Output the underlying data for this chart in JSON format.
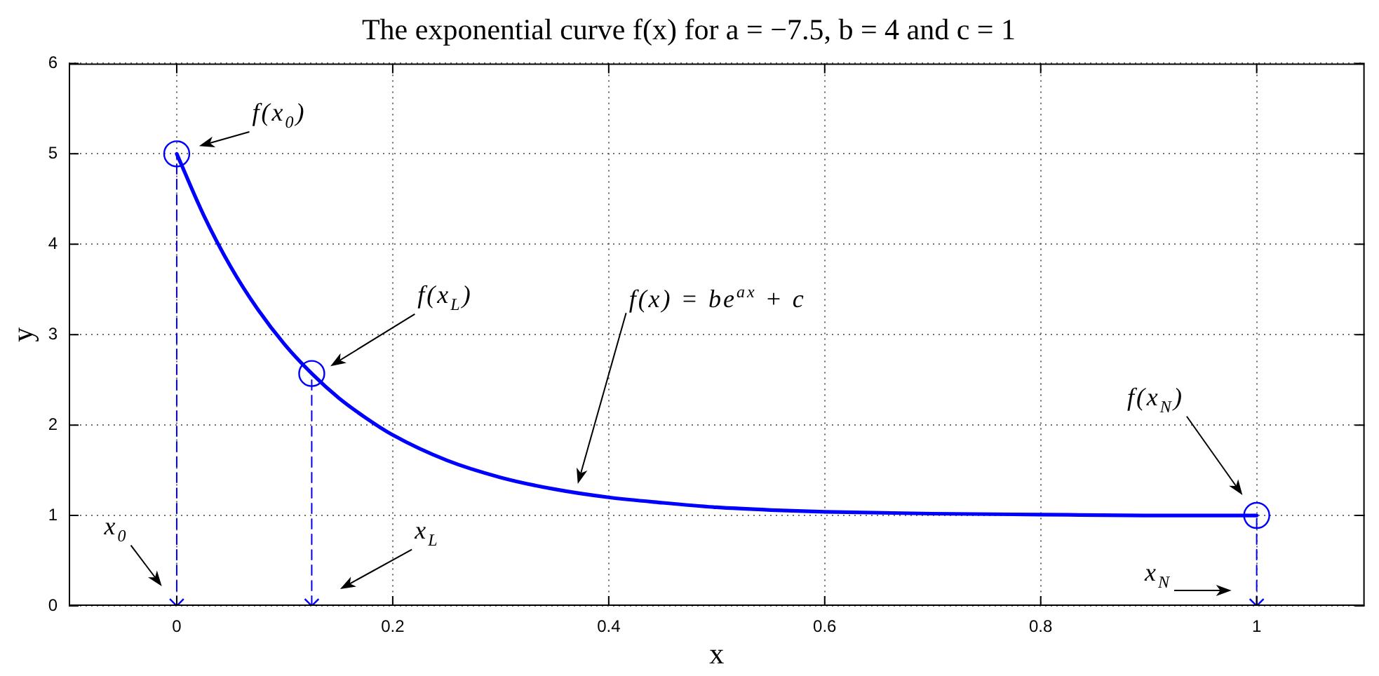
{
  "chart_data": {
    "type": "line",
    "title": "The exponential curve f(x) for a = −7.5, b = 4 and c = 1",
    "xlabel": "x",
    "ylabel": "y",
    "xlim": [
      -0.1,
      1.1
    ],
    "ylim": [
      0,
      6
    ],
    "xticks": [
      0,
      0.2,
      0.4,
      0.6,
      0.8,
      1
    ],
    "yticks": [
      0,
      1,
      2,
      3,
      4,
      5,
      6
    ],
    "grid": true,
    "series": [
      {
        "type": "line",
        "color": "#0000ff",
        "marker": "none",
        "line_style": "solid",
        "x": [
          0,
          0.025,
          0.05,
          0.075,
          0.1,
          0.125,
          0.15,
          0.175,
          0.2,
          0.25,
          0.3,
          0.35,
          0.4,
          0.45,
          0.5,
          0.55,
          0.6,
          0.7,
          0.8,
          0.9,
          1
        ],
        "values": [
          5,
          4.32,
          3.75,
          3.28,
          2.89,
          2.57,
          2.3,
          2.08,
          1.89,
          1.61,
          1.42,
          1.29,
          1.2,
          1.14,
          1.09,
          1.06,
          1.04,
          1.02,
          1.01,
          1.0,
          1.0
        ]
      },
      {
        "type": "line",
        "color": "#0000ff",
        "marker": "none",
        "line_style": "dashed",
        "x": [
          0,
          0
        ],
        "values": [
          0,
          5
        ]
      },
      {
        "type": "line",
        "color": "#0000ff",
        "marker": "none",
        "line_style": "dashed",
        "x": [
          0.125,
          0.125
        ],
        "values": [
          0,
          2.57
        ]
      },
      {
        "type": "line",
        "color": "#0000ff",
        "marker": "none",
        "line_style": "dashed",
        "x": [
          1,
          1
        ],
        "values": [
          0,
          1.0
        ]
      },
      {
        "type": "scatter",
        "color": "#0000ff",
        "marker": "circle",
        "x": [
          0,
          0.125,
          1
        ],
        "values": [
          5,
          2.57,
          1.0
        ]
      },
      {
        "type": "scatter",
        "color": "#0000ff",
        "marker": "cross",
        "x": [
          0,
          0.125,
          1
        ],
        "values": [
          0,
          0,
          0
        ]
      }
    ],
    "annotations": [
      "f(x$_{0}$)",
      "f(x$_{L}$)",
      "f(x) = be$^{ax}$ + c",
      "f(x$_{N}$)",
      "x$_{0}$",
      "x$_{L}$",
      "x$_{N}$"
    ]
  }
}
